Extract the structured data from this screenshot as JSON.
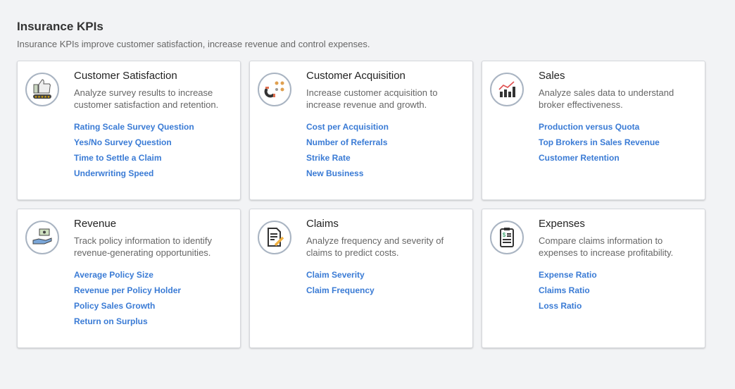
{
  "header": {
    "title": "Insurance KPIs",
    "subtitle": "Insurance KPIs improve customer satisfaction, increase revenue and control expenses."
  },
  "colors": {
    "link": "#3a7bd5",
    "icon_ring": "#a9b4c2",
    "background": "#f2f3f5"
  },
  "cards": [
    {
      "icon": "thumbs-up-rating-icon",
      "title": "Customer Satisfaction",
      "description": "Analyze survey results to increase customer satisfaction and retention.",
      "links": [
        "Rating Scale Survey Question",
        "Yes/No Survey Question",
        "Time to Settle a Claim",
        "Underwriting Speed"
      ]
    },
    {
      "icon": "magnet-people-icon",
      "title": "Customer Acquisition",
      "description": "Increase customer acquisition to increase revenue and growth.",
      "links": [
        "Cost per Acquisition",
        "Number of Referrals",
        "Strike Rate",
        "New Business"
      ]
    },
    {
      "icon": "bar-chart-trend-icon",
      "title": "Sales",
      "description": "Analyze sales data to understand broker effectiveness.",
      "links": [
        "Production versus Quota",
        "Top Brokers in Sales Revenue",
        "Customer Retention"
      ]
    },
    {
      "icon": "hand-money-icon",
      "title": "Revenue",
      "description": "Track policy information to identify revenue-generating opportunities.",
      "links": [
        "Average Policy Size",
        "Revenue per Policy Holder",
        "Policy Sales Growth",
        "Return on Surplus"
      ]
    },
    {
      "icon": "document-pencil-icon",
      "title": "Claims",
      "description": "Analyze frequency and severity of claims to predict costs.",
      "links": [
        "Claim Severity",
        "Claim Frequency"
      ]
    },
    {
      "icon": "clipboard-dollar-icon",
      "title": "Expenses",
      "description": "Compare claims information to expenses to increase profitability.",
      "links": [
        "Expense Ratio",
        "Claims Ratio",
        "Loss Ratio"
      ]
    }
  ]
}
